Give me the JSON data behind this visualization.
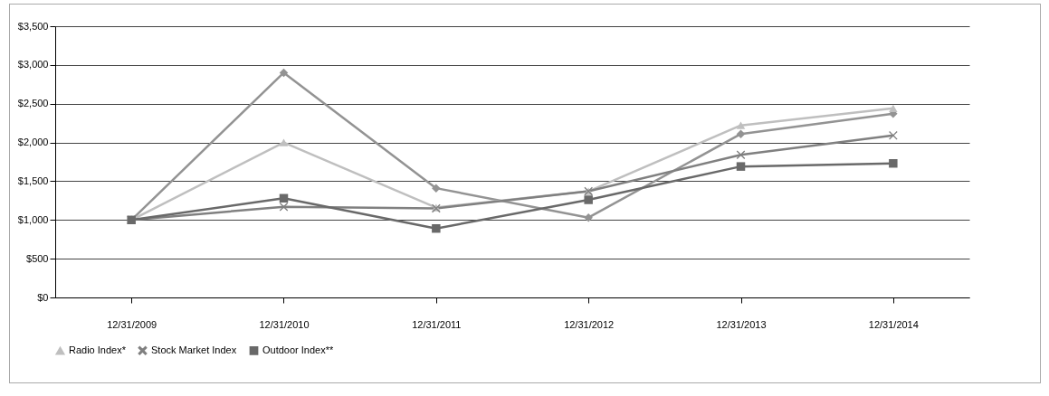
{
  "chart_data": {
    "type": "line",
    "categories": [
      "12/31/2009",
      "12/31/2010",
      "12/31/2011",
      "12/31/2012",
      "12/31/2013",
      "12/31/2014"
    ],
    "ylim": [
      0,
      3500
    ],
    "yticks": [
      {
        "value": 0,
        "label": "$0"
      },
      {
        "value": 500,
        "label": "$500"
      },
      {
        "value": 1000,
        "label": "$1,000"
      },
      {
        "value": 1500,
        "label": "$1,500"
      },
      {
        "value": 2000,
        "label": "$2,000"
      },
      {
        "value": 2500,
        "label": "$2,500"
      },
      {
        "value": 3000,
        "label": "$3,000"
      },
      {
        "value": 3500,
        "label": "$3,500"
      }
    ],
    "grid": "y",
    "legend": "bottom",
    "line_style": "solid",
    "series": [
      {
        "color": "#939393",
        "marker": "diamond",
        "values": [
          1000,
          2900,
          1410,
          1030,
          2110,
          2370
        ]
      },
      {
        "name": "Radio Index*",
        "color": "#bfbfbf",
        "marker": "triangle",
        "values": [
          1000,
          2000,
          1160,
          1370,
          2220,
          2440
        ]
      },
      {
        "name": "Stock Market Index",
        "color": "#808080",
        "marker": "cross",
        "values": [
          1000,
          1170,
          1150,
          1370,
          1840,
          2090
        ]
      },
      {
        "name": "Outdoor Index**",
        "color": "#696969",
        "marker": "square",
        "values": [
          1000,
          1280,
          890,
          1260,
          1690,
          1730
        ]
      }
    ]
  }
}
